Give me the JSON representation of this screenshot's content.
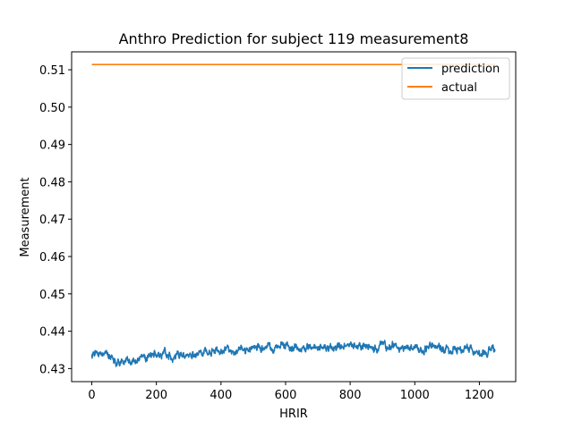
{
  "chart_data": {
    "type": "line",
    "title": "Anthro Prediction for subject 119 measurement8",
    "xlabel": "HRIR",
    "ylabel": "Measurement",
    "xlim": [
      -62.5,
      1312.5
    ],
    "ylim": [
      0.4265,
      0.5148
    ],
    "xticks": [
      0,
      200,
      400,
      600,
      800,
      1000,
      1200
    ],
    "xtick_labels": [
      "0",
      "200",
      "400",
      "600",
      "800",
      "1000",
      "1200"
    ],
    "yticks": [
      0.43,
      0.44,
      0.45,
      0.46,
      0.47,
      0.48,
      0.49,
      0.5,
      0.51
    ],
    "ytick_labels": [
      "0.43",
      "0.44",
      "0.45",
      "0.46",
      "0.47",
      "0.48",
      "0.49",
      "0.50",
      "0.51"
    ],
    "grid": false,
    "legend_location": "upper right",
    "series": [
      {
        "name": "prediction",
        "color": "#1f77b4",
        "x_range": [
          0,
          1249
        ],
        "profile_x": [
          0,
          20,
          40,
          60,
          80,
          100,
          120,
          150,
          180,
          200,
          250,
          300,
          350,
          400,
          450,
          500,
          550,
          600,
          650,
          700,
          750,
          800,
          850,
          900,
          950,
          1000,
          1050,
          1100,
          1150,
          1200,
          1249
        ],
        "profile_y": [
          0.434,
          0.434,
          0.4338,
          0.433,
          0.4318,
          0.432,
          0.432,
          0.433,
          0.4335,
          0.4338,
          0.4335,
          0.4338,
          0.4345,
          0.435,
          0.4352,
          0.4355,
          0.4355,
          0.4358,
          0.4355,
          0.4355,
          0.4358,
          0.436,
          0.436,
          0.4358,
          0.4358,
          0.4355,
          0.4358,
          0.4355,
          0.4348,
          0.4345,
          0.435
        ],
        "noise_amplitude": 0.0018,
        "y_min": 0.4298,
        "y_max": 0.4408
      },
      {
        "name": "actual",
        "color": "#ff7f0e",
        "x": [
          0,
          1249
        ],
        "y": [
          0.5114,
          0.5114
        ]
      }
    ]
  }
}
